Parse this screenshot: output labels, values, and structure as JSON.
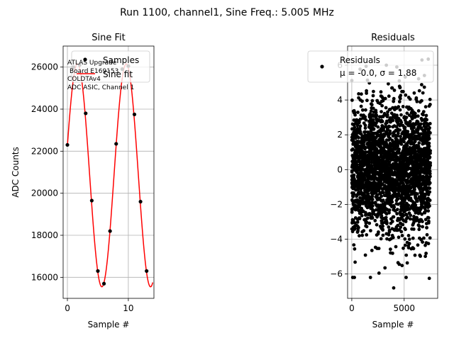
{
  "figure": {
    "suptitle": "Run 1100, channel1, Sine Freq.: 5.005 MHz"
  },
  "chart_data": [
    {
      "type": "scatter",
      "title": "Sine Fit",
      "xlabel": "Sample #",
      "ylabel": "ADC Counts",
      "xlim": [
        -0.7,
        14.2
      ],
      "ylim": [
        15000,
        27000
      ],
      "xticks": [
        0,
        10
      ],
      "yticks": [
        16000,
        18000,
        20000,
        22000,
        24000,
        26000
      ],
      "grid": true,
      "legend_position": "upper-right",
      "legend": [
        "Samples",
        "Sine fit"
      ],
      "annotation": [
        "ATLAS Upgrade",
        "Board E169153",
        "COLDTAv4",
        "ADC ASIC, Channel 1"
      ],
      "series": [
        {
          "name": "Samples",
          "style": "points",
          "color": "#000000",
          "x": [
            0,
            1,
            2,
            3,
            4,
            5,
            6,
            7,
            8,
            9,
            10,
            11,
            12,
            13
          ],
          "y": [
            22300,
            26000,
            26100,
            23800,
            19650,
            16300,
            15700,
            18200,
            22350,
            25900,
            26050,
            23750,
            19600,
            16300
          ]
        },
        {
          "name": "Sine fit",
          "style": "line",
          "color": "#ff0000",
          "model": {
            "offset": 20850,
            "amplitude": 5300,
            "frequency": 0.1251,
            "phase": 0.27,
            "x_min": 0,
            "x_max": 14
          }
        }
      ]
    },
    {
      "type": "scatter",
      "title": "Residuals",
      "xlabel": "Sample #",
      "ylabel": "",
      "xlim": [
        -400,
        8200
      ],
      "ylim": [
        -7.4,
        7.1
      ],
      "xticks": [
        0,
        5000
      ],
      "yticks": [
        -6,
        -4,
        -2,
        0,
        2,
        4,
        6
      ],
      "grid": true,
      "legend_position": "upper-right",
      "legend": [
        "Residuals",
        "μ = -0.0, σ = 1.88"
      ],
      "series": [
        {
          "name": "Residuals",
          "style": "points",
          "color": "#000000",
          "n_points": 7500,
          "x_range": [
            0,
            7500
          ],
          "mean": -0.0,
          "std": 1.88,
          "highlighted_outliers": [
            {
              "x": 4000,
              "y": -6.8
            },
            {
              "x": 7400,
              "y": -6.25
            },
            {
              "x": 2600,
              "y": -5.95
            },
            {
              "x": 3300,
              "y": 6.0
            },
            {
              "x": 6700,
              "y": 6.3
            },
            {
              "x": 7300,
              "y": 6.35
            }
          ]
        }
      ]
    }
  ]
}
